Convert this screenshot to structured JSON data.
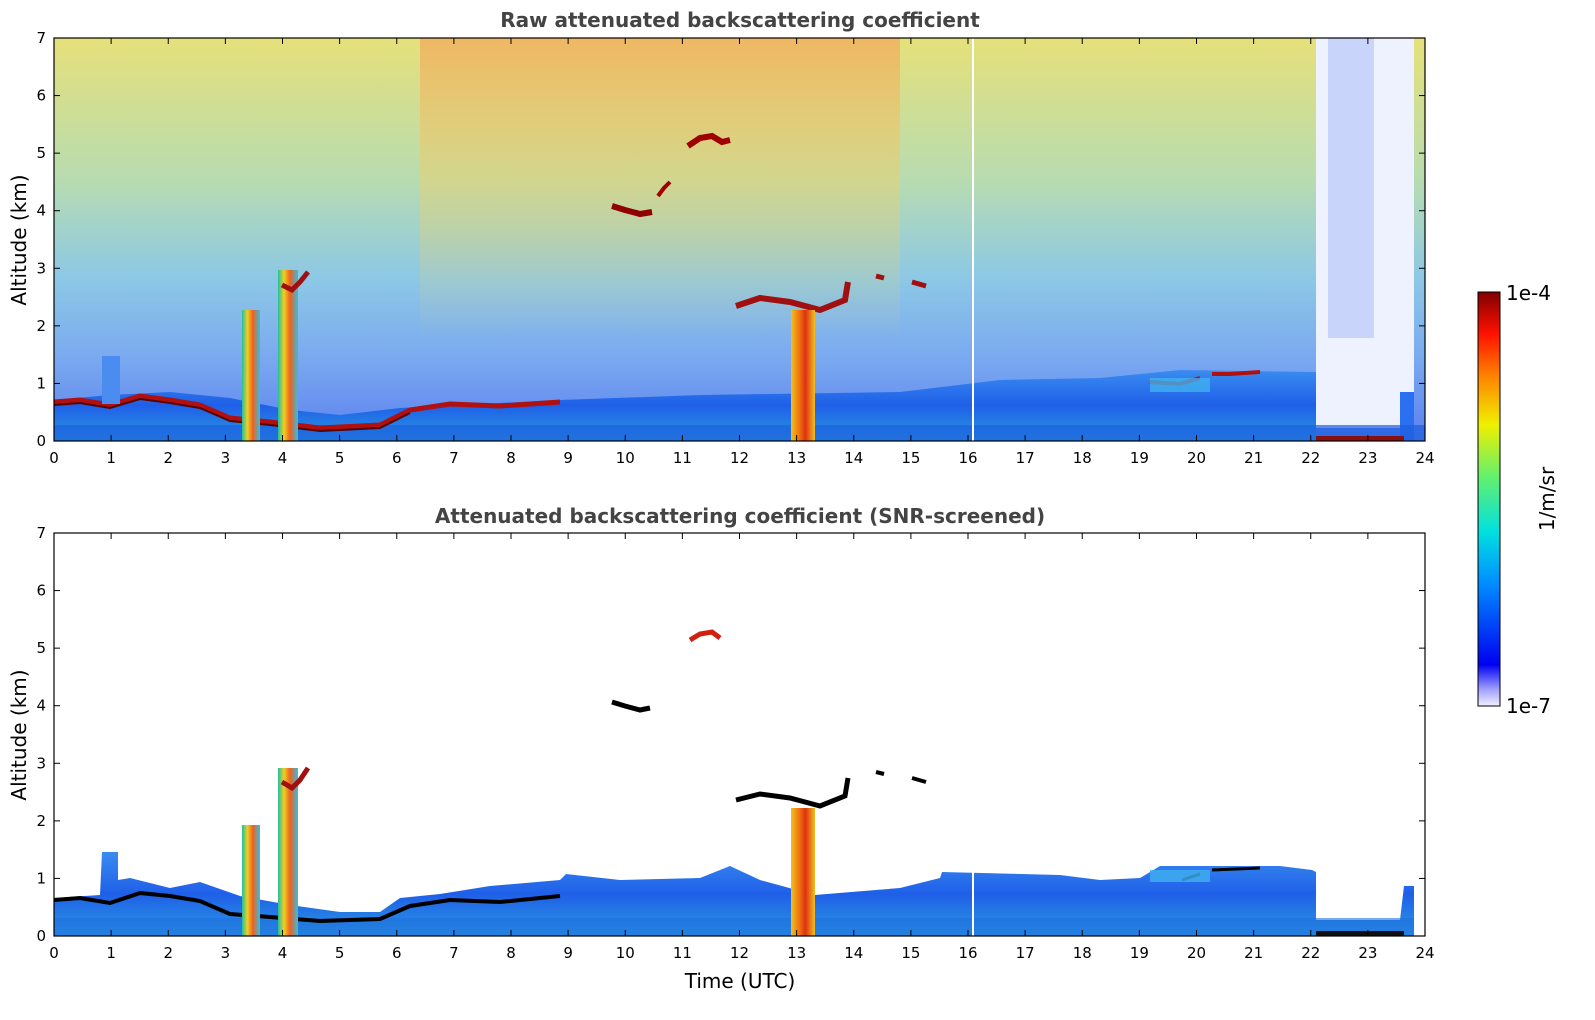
{
  "chart_data": [
    {
      "type": "heatmap",
      "title": "Raw attenuated backscattering coefficient",
      "xlabel": "",
      "ylabel": "Altitude (km)",
      "xlim": [
        0,
        24
      ],
      "ylim": [
        0,
        7
      ],
      "x_ticks": [
        "0",
        "1",
        "2",
        "3",
        "4",
        "5",
        "6",
        "7",
        "8",
        "9",
        "10",
        "11",
        "12",
        "13",
        "14",
        "15",
        "16",
        "17",
        "18",
        "19",
        "20",
        "21",
        "22",
        "23",
        "24"
      ],
      "y_ticks": [
        "0",
        "1",
        "2",
        "3",
        "4",
        "5",
        "6",
        "7"
      ],
      "features": [
        {
          "name": "boundary layer aerosol",
          "x_range": [
            0,
            23.8
          ],
          "top_km": 0.7
        },
        {
          "name": "aerosol layer",
          "x_range": [
            0.9,
            1.2
          ],
          "top_km": 1.5
        },
        {
          "name": "cloud",
          "x_range": [
            3.3,
            3.6
          ],
          "alt_range_km": [
            0,
            2.3
          ]
        },
        {
          "name": "cloud",
          "x_range": [
            3.9,
            4.5
          ],
          "alt_range_km": [
            0,
            3.0
          ]
        },
        {
          "name": "cloud",
          "x_range": [
            9.9,
            10.5
          ],
          "alt_km": 4.0
        },
        {
          "name": "cloud",
          "x_range": [
            10.6,
            10.9
          ],
          "alt_km": 4.4
        },
        {
          "name": "cloud",
          "x_range": [
            11.1,
            11.8
          ],
          "alt_km": 5.2
        },
        {
          "name": "cloud",
          "x_range": [
            11.8,
            14.1
          ],
          "alt_range_km": [
            2.0,
            2.8
          ]
        },
        {
          "name": "precipitation",
          "x_range": [
            12.9,
            13.3
          ],
          "alt_range_km": [
            0,
            2.4
          ]
        },
        {
          "name": "cloud",
          "x_range": [
            14.4,
            15.3
          ],
          "alt_range_km": [
            2.7,
            2.9
          ]
        },
        {
          "name": "cloud",
          "x_range": [
            19.6,
            21.3
          ],
          "alt_range_km": [
            1.0,
            1.2
          ]
        },
        {
          "name": "fog",
          "x_range": [
            22.1,
            23.6
          ],
          "alt_range_km": [
            0,
            0.1
          ]
        }
      ]
    },
    {
      "type": "heatmap",
      "title": "Attenuated backscattering coefficient (SNR-screened)",
      "xlabel": "Time (UTC)",
      "ylabel": "Altitude (km)",
      "xlim": [
        0,
        24
      ],
      "ylim": [
        0,
        7
      ],
      "x_ticks": [
        "0",
        "1",
        "2",
        "3",
        "4",
        "5",
        "6",
        "7",
        "8",
        "9",
        "10",
        "11",
        "12",
        "13",
        "14",
        "15",
        "16",
        "17",
        "18",
        "19",
        "20",
        "21",
        "22",
        "23",
        "24"
      ],
      "y_ticks": [
        "0",
        "1",
        "2",
        "3",
        "4",
        "5",
        "6",
        "7"
      ],
      "features": [
        {
          "name": "boundary layer aerosol",
          "x_range": [
            0,
            23.8
          ],
          "top_km": 1.1
        },
        {
          "name": "cloud",
          "x_range": [
            3.3,
            3.6
          ],
          "alt_range_km": [
            0,
            2.3
          ]
        },
        {
          "name": "cloud",
          "x_range": [
            3.9,
            4.5
          ],
          "alt_range_km": [
            0,
            3.0
          ]
        },
        {
          "name": "cloud",
          "x_range": [
            9.9,
            10.5
          ],
          "alt_km": 4.0
        },
        {
          "name": "cloud",
          "x_range": [
            11.1,
            11.8
          ],
          "alt_km": 5.2
        },
        {
          "name": "cloud",
          "x_range": [
            11.8,
            14.1
          ],
          "alt_range_km": [
            2.0,
            2.8
          ]
        },
        {
          "name": "precipitation",
          "x_range": [
            12.9,
            13.3
          ],
          "alt_range_km": [
            0,
            2.4
          ]
        },
        {
          "name": "fog",
          "x_range": [
            22.1,
            23.6
          ],
          "alt_range_km": [
            0,
            0.1
          ]
        }
      ]
    }
  ],
  "colorbar": {
    "max_label": "1e-4",
    "min_label": "1e-7",
    "label": "1/m/sr",
    "colormap": "jet"
  },
  "colors": {
    "title": "#444444",
    "strong_signal": "#8b0000",
    "weak_signal": "#1a40e0",
    "background": "#ffffff"
  }
}
